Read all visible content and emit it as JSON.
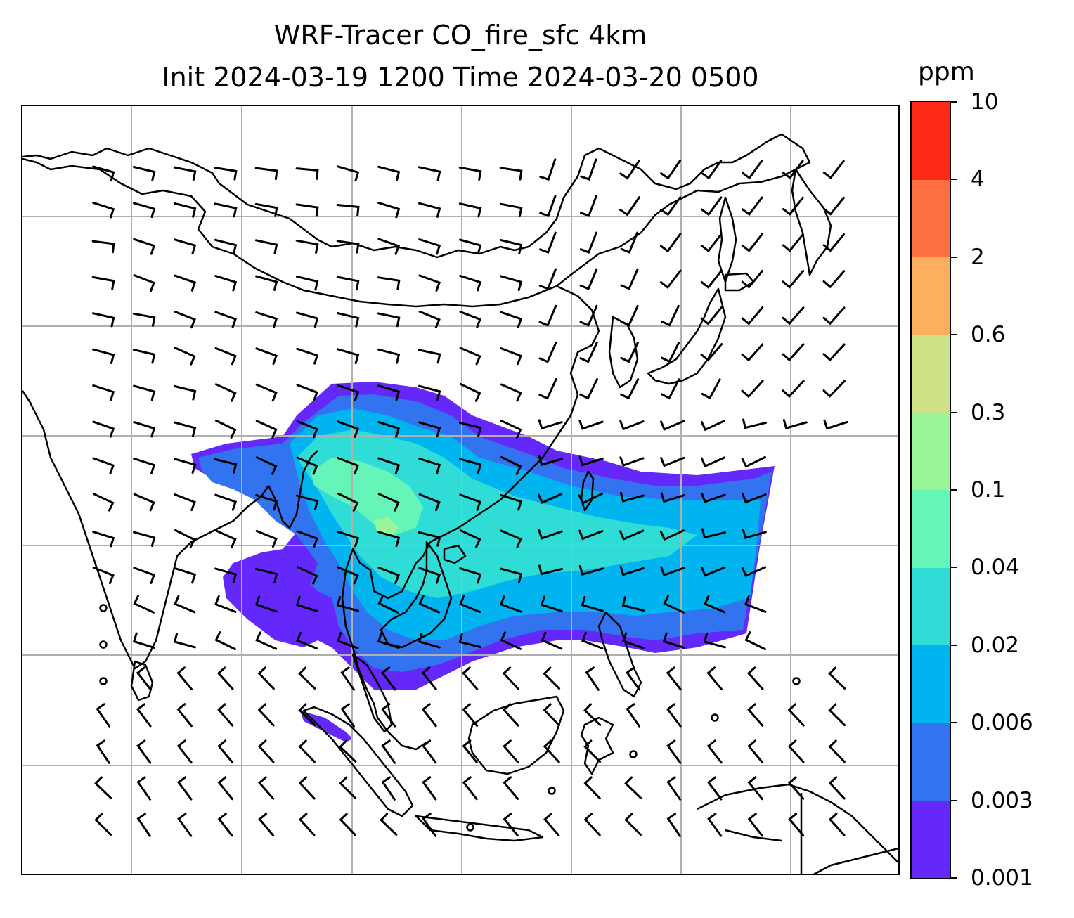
{
  "title": {
    "line1": "WRF-Tracer CO_fire_sfc 4km",
    "line2": "Init 2024-03-19 1200 Time 2024-03-20 0500"
  },
  "colorbar": {
    "units": "ppm",
    "levels": [
      "0.001",
      "0.003",
      "0.006",
      "0.02",
      "0.04",
      "0.1",
      "0.3",
      "0.6",
      "2",
      "4",
      "10"
    ],
    "colors": [
      "#6428fa",
      "#3273f0",
      "#00b4f0",
      "#2fdcd6",
      "#66f5b8",
      "#99f598",
      "#cde287",
      "#fcaf5f",
      "#fd7040",
      "#fc2a17"
    ]
  },
  "map": {
    "projection": "lambert-conformal",
    "coastline_color": "#000000",
    "gridline_color": "#b0b0b0",
    "wind_barb_color": "#000000",
    "layers": [
      "CO fire surface tracer shading",
      "coastlines",
      "lat/lon gridlines",
      "wind barbs"
    ]
  }
}
